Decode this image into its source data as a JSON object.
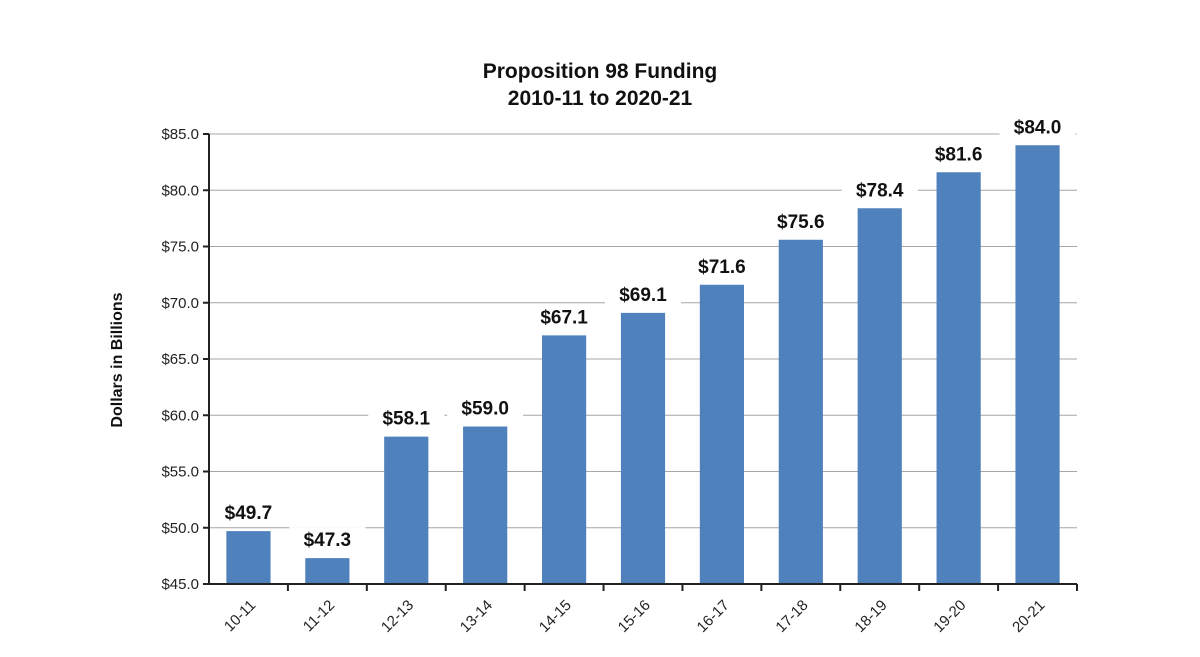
{
  "chart_data": {
    "type": "bar",
    "title": [
      "Proposition 98 Funding",
      "2010-11 to 2020-21"
    ],
    "xlabel": "",
    "ylabel": "Dollars in Billions",
    "categories": [
      "10-11",
      "11-12",
      "12-13",
      "13-14",
      "14-15",
      "15-16",
      "16-17",
      "17-18",
      "18-19",
      "19-20",
      "20-21"
    ],
    "values": [
      49.7,
      47.3,
      58.1,
      59.0,
      67.1,
      69.1,
      71.6,
      75.6,
      78.4,
      81.6,
      84.0
    ],
    "data_labels": [
      "$49.7",
      "$47.3",
      "$58.1",
      "$59.0",
      "$67.1",
      "$69.1",
      "$71.6",
      "$75.6",
      "$78.4",
      "$81.6",
      "$84.0"
    ],
    "ylim": [
      45,
      85
    ],
    "yticks": [
      45,
      50,
      55,
      60,
      65,
      70,
      75,
      80,
      85
    ],
    "ytick_labels": [
      "$45.0",
      "$50.0",
      "$55.0",
      "$60.0",
      "$65.0",
      "$70.0",
      "$75.0",
      "$80.0",
      "$85.0"
    ],
    "grid": true,
    "legend": "none",
    "bar_color": "#4F81BD"
  }
}
